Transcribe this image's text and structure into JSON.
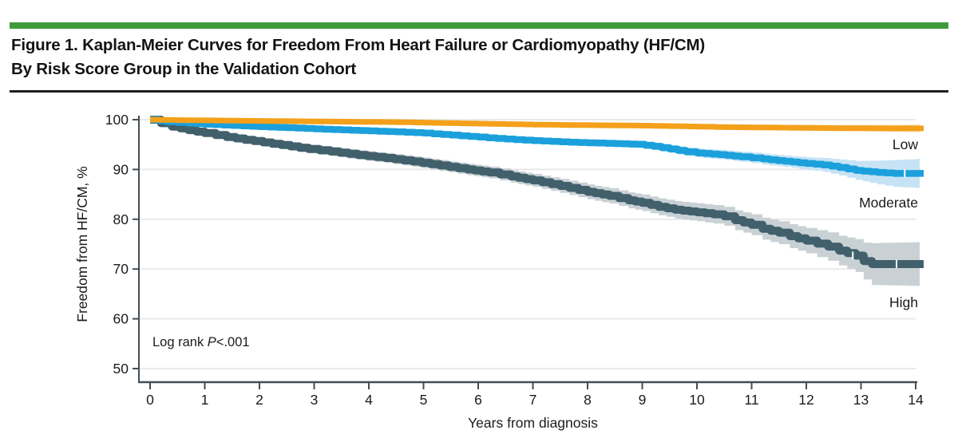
{
  "figure": {
    "title_line1": "Figure 1. Kaplan-Meier Curves for Freedom From Heart Failure or Cardiomyopathy (HF/CM)",
    "title_line2": "By Risk Score Group in the Validation Cohort",
    "accent_color": "#3f9b3a"
  },
  "annotation": {
    "prefix": "Log rank ",
    "p_symbol": "P",
    "suffix": "<.001"
  },
  "chart_data": {
    "type": "line",
    "subtype": "kaplan-meier-step",
    "xlabel": "Years from diagnosis",
    "ylabel": "Freedom from HF/CM, %",
    "x_range": [
      0,
      14
    ],
    "y_range": [
      50,
      100
    ],
    "xticks": [
      0,
      1,
      2,
      3,
      4,
      5,
      6,
      7,
      8,
      9,
      10,
      11,
      12,
      13,
      14
    ],
    "yticks": [
      50,
      60,
      70,
      80,
      90,
      100
    ],
    "grid": "horizontal",
    "legend_position": "right-of-curve-ends",
    "annotation_text": "Log rank P<.001",
    "axis_color": "#414e55",
    "grid_color": "#e9e9e9",
    "series": [
      {
        "name": "Low",
        "color": "#f4a01a",
        "ci_color": "#fbdfae",
        "points": [
          [
            0,
            100
          ],
          [
            0.5,
            99.9
          ],
          [
            1,
            99.85
          ],
          [
            1.5,
            99.8
          ],
          [
            2,
            99.75
          ],
          [
            2.5,
            99.7
          ],
          [
            3,
            99.65
          ],
          [
            3.5,
            99.6
          ],
          [
            4,
            99.55
          ],
          [
            4.5,
            99.5
          ],
          [
            5,
            99.4
          ],
          [
            5.5,
            99.3
          ],
          [
            6,
            99.2
          ],
          [
            6.5,
            99.1
          ],
          [
            7,
            99.0
          ],
          [
            7.5,
            98.95
          ],
          [
            8,
            98.9
          ],
          [
            8.5,
            98.85
          ],
          [
            9,
            98.8
          ],
          [
            9.5,
            98.7
          ],
          [
            10,
            98.6
          ],
          [
            10.5,
            98.5
          ],
          [
            11,
            98.45
          ],
          [
            11.5,
            98.4
          ],
          [
            12,
            98.35
          ],
          [
            12.5,
            98.3
          ],
          [
            13,
            98.3
          ],
          [
            13.5,
            98.25
          ],
          [
            14,
            98.25
          ]
        ],
        "ci_halfwidth": [
          0.05,
          0.1,
          0.15,
          0.15,
          0.2,
          0.2,
          0.25,
          0.25,
          0.3,
          0.3,
          0.3,
          0.35,
          0.35,
          0.4,
          0.4,
          0.4,
          0.45,
          0.45,
          0.45,
          0.5,
          0.5,
          0.5,
          0.55,
          0.55,
          0.6,
          0.6,
          0.65,
          0.7,
          0.75
        ],
        "censor_marks": []
      },
      {
        "name": "Moderate",
        "color": "#1ba0dc",
        "ci_color": "#c6e3f5",
        "points": [
          [
            0,
            100
          ],
          [
            0.3,
            99.6
          ],
          [
            0.7,
            99.3
          ],
          [
            1,
            99.1
          ],
          [
            1.5,
            98.85
          ],
          [
            2,
            98.6
          ],
          [
            2.5,
            98.4
          ],
          [
            3,
            98.15
          ],
          [
            3.5,
            97.95
          ],
          [
            4,
            97.75
          ],
          [
            4.5,
            97.55
          ],
          [
            5,
            97.3
          ],
          [
            5.5,
            96.9
          ],
          [
            6,
            96.5
          ],
          [
            6.5,
            96.1
          ],
          [
            7,
            95.8
          ],
          [
            7.5,
            95.55
          ],
          [
            8,
            95.35
          ],
          [
            8.5,
            95.2
          ],
          [
            8.9,
            95.05
          ],
          [
            9.2,
            94.65
          ],
          [
            9.5,
            94.1
          ],
          [
            9.8,
            93.55
          ],
          [
            10,
            93.3
          ],
          [
            10.4,
            93.0
          ],
          [
            10.8,
            92.55
          ],
          [
            11.2,
            92.1
          ],
          [
            11.6,
            91.65
          ],
          [
            12,
            91.2
          ],
          [
            12.3,
            90.9
          ],
          [
            12.6,
            90.4
          ],
          [
            12.9,
            89.8
          ],
          [
            13.3,
            89.4
          ],
          [
            13.6,
            89.2
          ],
          [
            14,
            89.2
          ]
        ],
        "ci_halfwidth": [
          0.05,
          0.1,
          0.15,
          0.2,
          0.25,
          0.3,
          0.35,
          0.4,
          0.4,
          0.45,
          0.45,
          0.5,
          0.5,
          0.55,
          0.6,
          0.6,
          0.65,
          0.65,
          0.7,
          0.7,
          0.75,
          0.8,
          0.85,
          0.9,
          0.95,
          1.0,
          1.1,
          1.15,
          1.25,
          1.4,
          1.6,
          1.9,
          2.4,
          2.7,
          2.9
        ],
        "censor_marks": [
          [
            13.8,
            89.2
          ]
        ]
      },
      {
        "name": "High",
        "color": "#41606c",
        "ci_color": "#c9d1d5",
        "points": [
          [
            0,
            100
          ],
          [
            0.2,
            99.3
          ],
          [
            0.4,
            98.6
          ],
          [
            0.7,
            97.9
          ],
          [
            1,
            97.3
          ],
          [
            1.4,
            96.5
          ],
          [
            1.9,
            95.7
          ],
          [
            2.4,
            94.9
          ],
          [
            2.9,
            94.1
          ],
          [
            3.3,
            93.6
          ],
          [
            3.8,
            92.9
          ],
          [
            4.3,
            92.3
          ],
          [
            4.8,
            91.6
          ],
          [
            5.3,
            90.8
          ],
          [
            5.8,
            90.0
          ],
          [
            6.2,
            89.4
          ],
          [
            6.6,
            88.6
          ],
          [
            7,
            87.8
          ],
          [
            7.5,
            86.7
          ],
          [
            8,
            85.5
          ],
          [
            8.4,
            84.7
          ],
          [
            8.75,
            83.8
          ],
          [
            9,
            83.3
          ],
          [
            9.3,
            82.5
          ],
          [
            9.6,
            81.9
          ],
          [
            10,
            81.4
          ],
          [
            10.3,
            81.0
          ],
          [
            10.5,
            80.6
          ],
          [
            10.7,
            79.8
          ],
          [
            11,
            78.9
          ],
          [
            11.2,
            78.1
          ],
          [
            11.5,
            77.3
          ],
          [
            11.7,
            76.6
          ],
          [
            12,
            75.7
          ],
          [
            12.2,
            75.1
          ],
          [
            12.4,
            74.5
          ],
          [
            12.6,
            73.7
          ],
          [
            12.9,
            72.7
          ],
          [
            13.05,
            71.6
          ],
          [
            13.2,
            71.0
          ],
          [
            14,
            71.0
          ]
        ],
        "ci_halfwidth": [
          0.05,
          0.2,
          0.3,
          0.4,
          0.5,
          0.6,
          0.7,
          0.8,
          0.85,
          0.9,
          0.95,
          1.0,
          1.05,
          1.1,
          1.15,
          1.2,
          1.25,
          1.3,
          1.4,
          1.5,
          1.55,
          1.6,
          1.65,
          1.7,
          1.75,
          1.8,
          1.85,
          1.9,
          2.0,
          2.1,
          2.2,
          2.3,
          2.4,
          2.55,
          2.7,
          2.85,
          3.0,
          3.3,
          3.7,
          4.2,
          4.4
        ],
        "censor_marks": [
          [
            12.85,
            72.7
          ],
          [
            13.65,
            71.0
          ]
        ]
      }
    ]
  }
}
